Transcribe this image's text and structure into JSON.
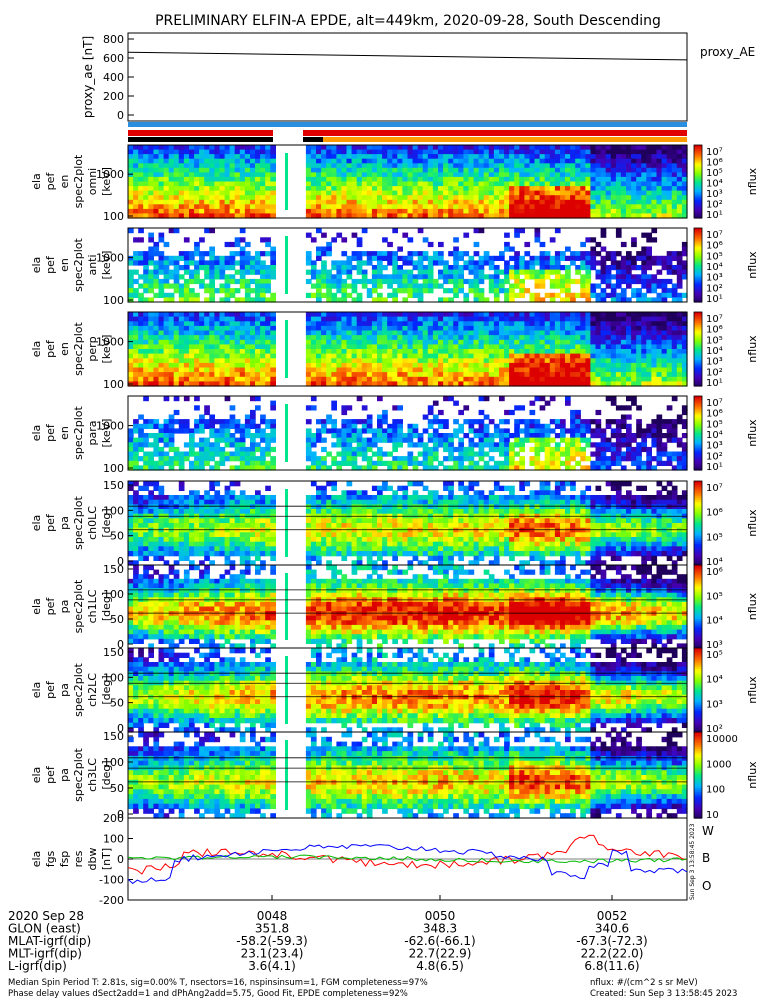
{
  "title": "PRELIMINARY ELFIN-A EPDE, alt=449km, 2020-09-28, South Descending",
  "chart_data": [
    {
      "type": "line",
      "panel": "proxy_ae",
      "ylabel": [
        "proxy_ae",
        "[nT]"
      ],
      "ylim": [
        0,
        800
      ],
      "yticks": [
        "800",
        "600",
        "400",
        "200",
        "0"
      ],
      "series": [
        {
          "name": "proxy_AE",
          "x": [
            0,
            1
          ],
          "values": [
            660,
            580
          ]
        }
      ],
      "legend": "proxy_AE"
    },
    {
      "type": "heatmap",
      "panel": "omni",
      "ylabel": [
        "ela",
        "pef",
        "en",
        "spec2plot",
        "omni",
        "[keV]"
      ],
      "yscale": "log",
      "yticks": [
        "1000",
        "100"
      ],
      "colorbar": {
        "label": "nflux",
        "ticks": [
          "10⁷",
          "10⁶",
          "10⁵",
          "10⁴",
          "10³",
          "10²",
          "10¹"
        ]
      }
    },
    {
      "type": "heatmap",
      "panel": "anti",
      "ylabel": [
        "ela",
        "pef",
        "en",
        "spec2plot",
        "anti",
        "[keV]"
      ],
      "yscale": "log",
      "yticks": [
        "1000",
        "100"
      ],
      "colorbar": {
        "label": "nflux",
        "ticks": [
          "10⁷",
          "10⁶",
          "10⁵",
          "10⁴",
          "10³",
          "10²",
          "10¹"
        ]
      }
    },
    {
      "type": "heatmap",
      "panel": "perp",
      "ylabel": [
        "ela",
        "pef",
        "en",
        "spec2plot",
        "perp",
        "[keV]"
      ],
      "yscale": "log",
      "yticks": [
        "1000",
        "100"
      ],
      "colorbar": {
        "label": "nflux",
        "ticks": [
          "10⁷",
          "10⁶",
          "10⁵",
          "10⁴",
          "10³",
          "10²",
          "10¹"
        ]
      }
    },
    {
      "type": "heatmap",
      "panel": "para",
      "ylabel": [
        "ela",
        "pef",
        "en",
        "spec2plot",
        "para",
        "[keV]"
      ],
      "yscale": "log",
      "yticks": [
        "1000",
        "100"
      ],
      "colorbar": {
        "label": "nflux",
        "ticks": [
          "10⁷",
          "10⁶",
          "10⁵",
          "10⁴",
          "10³",
          "10²",
          "10¹"
        ]
      }
    },
    {
      "type": "heatmap",
      "panel": "ch0LC",
      "ylabel": [
        "ela",
        "pef",
        "pa",
        "spec2plot",
        "ch0LC",
        "[deg]"
      ],
      "yticks": [
        "150",
        "100",
        "50",
        "0"
      ],
      "colorbar": {
        "label": "nflux",
        "ticks": [
          "10⁷",
          "10⁶",
          "10⁵",
          "10⁴"
        ]
      }
    },
    {
      "type": "heatmap",
      "panel": "ch1LC",
      "ylabel": [
        "ela",
        "pef",
        "pa",
        "spec2plot",
        "ch1LC",
        "[deg]"
      ],
      "yticks": [
        "150",
        "100",
        "50",
        "0"
      ],
      "colorbar": {
        "label": "nflux",
        "ticks": [
          "10⁶",
          "10⁵",
          "10⁴",
          "10³"
        ]
      }
    },
    {
      "type": "heatmap",
      "panel": "ch2LC",
      "ylabel": [
        "ela",
        "pef",
        "pa",
        "spec2plot",
        "ch2LC",
        "[deg]"
      ],
      "yticks": [
        "150",
        "100",
        "50",
        "0"
      ],
      "colorbar": {
        "label": "nflux",
        "ticks": [
          "10⁵",
          "10⁴",
          "10³",
          "10²"
        ]
      }
    },
    {
      "type": "heatmap",
      "panel": "ch3LC",
      "ylabel": [
        "ela",
        "pef",
        "pa",
        "spec2plot",
        "ch3LC",
        "[deg]"
      ],
      "yticks": [
        "150",
        "100",
        "50",
        "0"
      ],
      "colorbar": {
        "label": "nflux",
        "ticks": [
          "10000",
          "1000",
          "100",
          "10"
        ]
      }
    },
    {
      "type": "line",
      "panel": "dbw",
      "ylabel": [
        "ela",
        "fgs",
        "fsp",
        "res",
        "dbw",
        "[nT]"
      ],
      "ylim": [
        -200,
        200
      ],
      "yticks": [
        "200",
        "100",
        "0",
        "-100",
        "-200"
      ],
      "legend": [
        "W",
        "B",
        "O"
      ],
      "colors": {
        "W": "#ff0000",
        "B": "#00bb00",
        "O": "#0000ff"
      },
      "side_text": "Sun Sep 3 13:58:45 2023"
    }
  ],
  "time_axis": {
    "ticks": [
      "0048",
      "0050",
      "0052"
    ]
  },
  "orbit_table": {
    "rows": [
      {
        "label": "2020 Sep 28",
        "values": [
          "0048",
          "0050",
          "0052"
        ]
      },
      {
        "label": "GLON (east)",
        "values": [
          "351.8",
          "348.3",
          "340.6"
        ]
      },
      {
        "label": "MLAT-igrf(dip)",
        "values": [
          "-58.2(-59.3)",
          "-62.6(-66.1)",
          "-67.3(-72.3)"
        ]
      },
      {
        "label": "MLT-igrf(dip)",
        "values": [
          "23.1(23.4)",
          "22.7(22.9)",
          "22.2(22.0)"
        ]
      },
      {
        "label": "L-igrf(dip)",
        "values": [
          "3.6(4.1)",
          "4.8(6.5)",
          "6.8(11.6)"
        ]
      }
    ]
  },
  "footer": {
    "line1_left": "Median Spin Period T: 2.81s, sig=0.00% T, nsectors=16, nspinsinsum=1, FGM completeness=97%",
    "line2_left": "Phase delay values dSect2add=1 and dPhAng2add=5.75, Good Fit, EPDE completeness=92%",
    "line1_right": "nflux: #/(cm^2 s sr MeV)",
    "line2_right": "Created: Sun Sep  3 13:58:45 2023"
  }
}
